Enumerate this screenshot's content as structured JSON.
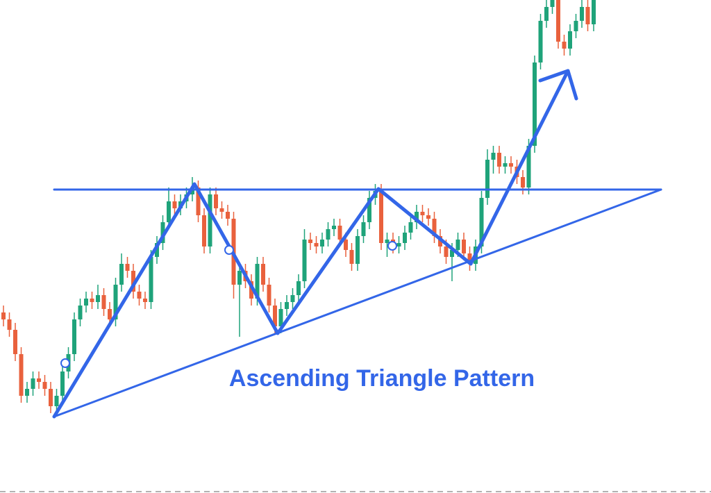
{
  "chart_data": {
    "type": "candlestick",
    "title": "Ascending Triangle Pattern",
    "up_color": "#1fa37a",
    "down_color": "#e9613d",
    "ylim": [
      0,
      710
    ],
    "open": [
      260,
      250,
      235,
      200,
      140,
      150,
      165,
      160,
      150,
      125,
      140,
      175,
      200,
      250,
      270,
      280,
      275,
      285,
      265,
      250,
      300,
      330,
      320,
      290,
      280,
      275,
      340,
      360,
      390,
      420,
      410,
      420,
      430,
      440,
      400,
      355,
      430,
      410,
      405,
      395,
      300,
      320,
      305,
      280,
      330,
      300,
      270,
      240,
      265,
      275,
      285,
      305,
      365,
      360,
      355,
      365,
      380,
      385,
      365,
      350,
      330,
      370,
      390,
      425,
      435,
      360,
      365,
      355,
      360,
      375,
      390,
      405,
      400,
      395,
      370,
      355,
      340,
      350,
      365,
      345,
      330,
      355,
      425,
      480,
      490,
      470,
      475,
      470,
      455,
      440,
      500,
      620,
      680,
      700,
      710,
      650,
      640,
      665,
      680,
      700,
      675
    ],
    "high": [
      270,
      260,
      245,
      210,
      160,
      175,
      175,
      170,
      160,
      150,
      185,
      210,
      260,
      280,
      290,
      290,
      300,
      295,
      275,
      310,
      345,
      340,
      330,
      300,
      290,
      350,
      370,
      400,
      440,
      430,
      430,
      440,
      455,
      450,
      410,
      440,
      440,
      420,
      415,
      405,
      330,
      330,
      315,
      340,
      340,
      310,
      280,
      275,
      285,
      295,
      315,
      380,
      375,
      370,
      375,
      390,
      395,
      395,
      375,
      360,
      380,
      400,
      435,
      445,
      445,
      375,
      375,
      370,
      385,
      400,
      415,
      415,
      410,
      405,
      380,
      365,
      360,
      375,
      375,
      355,
      365,
      435,
      495,
      500,
      500,
      485,
      485,
      480,
      465,
      510,
      630,
      690,
      710,
      720,
      720,
      660,
      675,
      690,
      710,
      710,
      720
    ],
    "low": [
      240,
      225,
      190,
      130,
      130,
      140,
      150,
      140,
      115,
      115,
      130,
      165,
      190,
      240,
      260,
      265,
      265,
      255,
      240,
      240,
      290,
      310,
      280,
      270,
      265,
      265,
      330,
      350,
      380,
      400,
      400,
      410,
      420,
      390,
      345,
      345,
      400,
      395,
      385,
      280,
      225,
      295,
      270,
      270,
      290,
      260,
      230,
      230,
      255,
      265,
      275,
      295,
      350,
      345,
      345,
      355,
      370,
      355,
      340,
      320,
      320,
      360,
      380,
      415,
      350,
      340,
      345,
      345,
      350,
      365,
      380,
      390,
      385,
      360,
      345,
      330,
      305,
      340,
      335,
      320,
      320,
      345,
      415,
      460,
      460,
      460,
      460,
      445,
      430,
      430,
      490,
      610,
      670,
      690,
      640,
      630,
      630,
      655,
      670,
      665,
      665
    ],
    "close": [
      250,
      235,
      200,
      140,
      150,
      165,
      160,
      150,
      125,
      140,
      175,
      200,
      250,
      270,
      280,
      275,
      285,
      265,
      250,
      300,
      330,
      320,
      290,
      280,
      275,
      340,
      360,
      390,
      420,
      410,
      420,
      430,
      440,
      400,
      355,
      430,
      410,
      405,
      395,
      300,
      320,
      305,
      280,
      330,
      300,
      270,
      240,
      265,
      275,
      285,
      305,
      365,
      360,
      355,
      365,
      380,
      385,
      365,
      350,
      330,
      370,
      390,
      425,
      435,
      360,
      365,
      355,
      360,
      375,
      390,
      405,
      400,
      395,
      370,
      355,
      340,
      350,
      365,
      345,
      330,
      355,
      425,
      480,
      490,
      470,
      475,
      470,
      455,
      440,
      500,
      620,
      680,
      700,
      710,
      650,
      640,
      665,
      680,
      700,
      675,
      710
    ]
  }
}
